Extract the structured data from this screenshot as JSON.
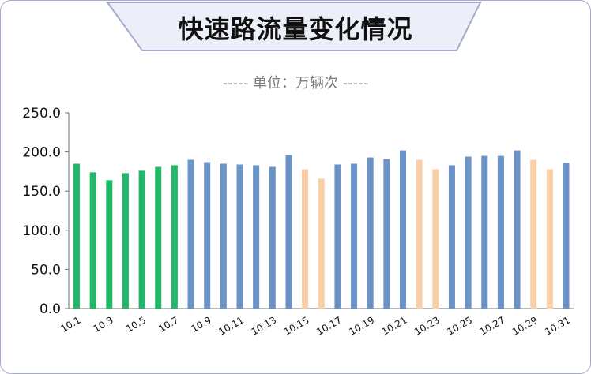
{
  "header": {
    "title": "快速路流量变化情况",
    "subtitle": "----- 单位：万辆次 -----"
  },
  "colors": {
    "banner_fill": "#eceef8",
    "banner_border": "#a7a9cf",
    "holiday_green": "#22b86a",
    "weekday_blue": "#6b93c7",
    "weekend_orange": "#f8cfa6",
    "axis": "#6d6d6d"
  },
  "chart_data": {
    "type": "bar",
    "ylim": [
      0,
      250
    ],
    "yticks": [
      "0.0",
      "50.0",
      "100.0",
      "150.0",
      "200.0",
      "250.0"
    ],
    "categories": [
      "10.1",
      "10.2",
      "10.3",
      "10.4",
      "10.5",
      "10.6",
      "10.7",
      "10.8",
      "10.9",
      "10.10",
      "10.11",
      "10.12",
      "10.13",
      "10.14",
      "10.15",
      "10.16",
      "10.17",
      "10.18",
      "10.19",
      "10.20",
      "10.21",
      "10.22",
      "10.23",
      "10.24",
      "10.25",
      "10.26",
      "10.27",
      "10.28",
      "10.29",
      "10.30",
      "10.31"
    ],
    "x_tick_labels": [
      "10.1",
      "",
      "10.3",
      "",
      "10.5",
      "",
      "10.7",
      "",
      "10.9",
      "",
      "10.11",
      "",
      "10.13",
      "",
      "10.15",
      "",
      "10.17",
      "",
      "10.19",
      "",
      "10.21",
      "",
      "10.23",
      "",
      "10.25",
      "",
      "10.27",
      "",
      "10.29",
      "",
      "10.31"
    ],
    "values": [
      185,
      174,
      164,
      173,
      176,
      181,
      183,
      190,
      187,
      185,
      184,
      183,
      181,
      196,
      178,
      166,
      184,
      185,
      193,
      191,
      202,
      190,
      178,
      183,
      194,
      195,
      195,
      202,
      190,
      178,
      186
    ],
    "bar_types": [
      "holiday",
      "holiday",
      "holiday",
      "holiday",
      "holiday",
      "holiday",
      "holiday",
      "weekday",
      "weekday",
      "weekday",
      "weekday",
      "weekday",
      "weekday",
      "weekday",
      "weekend",
      "weekend",
      "weekday",
      "weekday",
      "weekday",
      "weekday",
      "weekday",
      "weekend",
      "weekend",
      "weekday",
      "weekday",
      "weekday",
      "weekday",
      "weekday",
      "weekend",
      "weekend",
      "weekday"
    ]
  }
}
